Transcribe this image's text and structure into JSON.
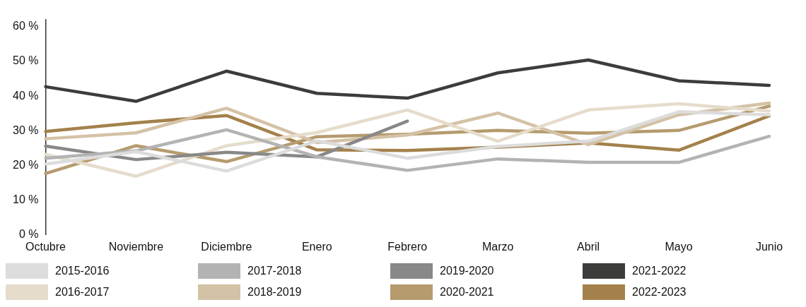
{
  "chart_data": {
    "type": "line",
    "categories": [
      "Octubre",
      "Noviembre",
      "Diciembre",
      "Enero",
      "Febrero",
      "Marzo",
      "Abril",
      "Mayo",
      "Junio"
    ],
    "ylim": [
      0,
      62
    ],
    "yticks": [
      {
        "value": 0,
        "label": "0 %"
      },
      {
        "value": 10,
        "label": "10 %"
      },
      {
        "value": 20,
        "label": "20 %"
      },
      {
        "value": 30,
        "label": "30 %"
      },
      {
        "value": 40,
        "label": "40 %"
      },
      {
        "value": 50,
        "label": "50 %"
      },
      {
        "value": 60,
        "label": "60 %"
      }
    ],
    "grid": false,
    "legend": "bottom",
    "marker": "none",
    "line_style": "solid",
    "series": [
      {
        "name": "2015-2016",
        "color": "#dcdcdc",
        "values": [
          20.4,
          24,
          18.4,
          27.1,
          22.1,
          25.5,
          27,
          35.5,
          34.6
        ]
      },
      {
        "name": "2017-2018",
        "color": "#b3b3b3",
        "values": [
          22.1,
          24.2,
          30.3,
          22.5,
          18.6,
          21.9,
          20.9,
          20.9,
          28.4
        ]
      },
      {
        "name": "2019-2020",
        "color": "#888888",
        "values": [
          25.6,
          21.7,
          23.8,
          22.5,
          32.8,
          null,
          null,
          null,
          null
        ]
      },
      {
        "name": "2021-2022",
        "color": "#3c3c3b",
        "values": [
          42.7,
          38.5,
          47.2,
          40.8,
          39.4,
          46.7,
          50.4,
          44.4,
          43.1
        ]
      },
      {
        "name": "2016-2017",
        "color": "#e5dccb",
        "values": [
          23.2,
          16.9,
          25.7,
          29.5,
          36,
          27,
          36,
          37.8,
          35.7
        ]
      },
      {
        "name": "2018-2019",
        "color": "#d4c2a6",
        "values": [
          27.7,
          29.4,
          36.5,
          26.6,
          28.8,
          35.1,
          26,
          34.6,
          38
        ]
      },
      {
        "name": "2020-2021",
        "color": "#b59b6e",
        "values": [
          17.7,
          25.7,
          21.1,
          28.3,
          29,
          30.1,
          29.3,
          30.1,
          37.1
        ]
      },
      {
        "name": "2022-2023",
        "color": "#a4814c",
        "values": [
          29.8,
          32.3,
          34.4,
          24.5,
          24.3,
          25.3,
          26.5,
          24.4,
          34.3
        ]
      }
    ]
  }
}
